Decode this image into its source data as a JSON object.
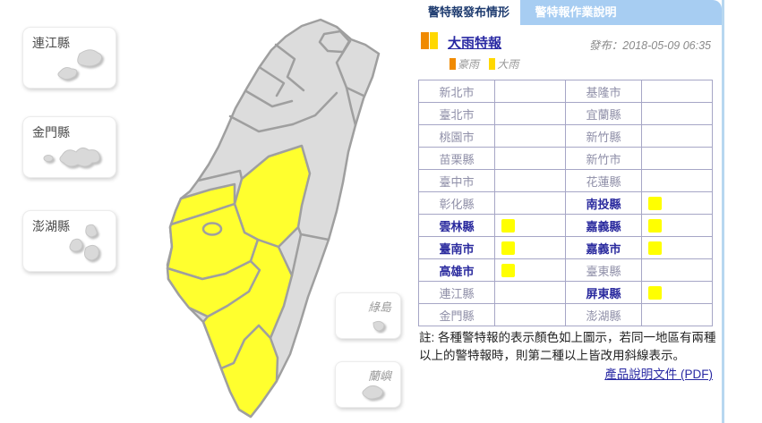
{
  "tabs": {
    "items": [
      {
        "label": "警特報發布情形",
        "active": true
      },
      {
        "label": "警特報作業說明",
        "active": false
      }
    ]
  },
  "warning": {
    "title": "大雨特報",
    "issued": "發布：2018-05-09 06:35"
  },
  "legend": {
    "items": [
      {
        "label": "豪雨",
        "color": "#f08a00"
      },
      {
        "label": "大雨",
        "color": "#ffd800"
      }
    ]
  },
  "map": {
    "warning_color": "#ffff2e",
    "normal_color": "#dcdcdc",
    "marker_color": "#ffff00",
    "warning_regions": [
      "nantou",
      "yunlin",
      "chiayi-county",
      "chiayi-city",
      "tainan",
      "kaohsiung",
      "pingtung"
    ]
  },
  "offshore": {
    "lienchiang": "連江縣",
    "kinmen": "金門縣",
    "penghu": "澎湖縣",
    "green_island": "綠島",
    "orchid_island": "蘭嶼"
  },
  "table": {
    "rows": [
      [
        {
          "name": "新北市",
          "warn": false
        },
        {
          "name": "基隆市",
          "warn": false
        }
      ],
      [
        {
          "name": "臺北市",
          "warn": false
        },
        {
          "name": "宜蘭縣",
          "warn": false
        }
      ],
      [
        {
          "name": "桃園市",
          "warn": false
        },
        {
          "name": "新竹縣",
          "warn": false
        }
      ],
      [
        {
          "name": "苗栗縣",
          "warn": false
        },
        {
          "name": "新竹市",
          "warn": false
        }
      ],
      [
        {
          "name": "臺中市",
          "warn": false
        },
        {
          "name": "花蓮縣",
          "warn": false
        }
      ],
      [
        {
          "name": "彰化縣",
          "warn": false
        },
        {
          "name": "南投縣",
          "warn": true
        }
      ],
      [
        {
          "name": "雲林縣",
          "warn": true
        },
        {
          "name": "嘉義縣",
          "warn": true
        }
      ],
      [
        {
          "name": "臺南市",
          "warn": true
        },
        {
          "name": "嘉義市",
          "warn": true
        }
      ],
      [
        {
          "name": "高雄市",
          "warn": true
        },
        {
          "name": "臺東縣",
          "warn": false
        }
      ],
      [
        {
          "name": "連江縣",
          "warn": false
        },
        {
          "name": "屏東縣",
          "warn": true
        }
      ],
      [
        {
          "name": "金門縣",
          "warn": false
        },
        {
          "name": "澎湖縣",
          "warn": false
        }
      ]
    ]
  },
  "note": "註: 各種警特報的表示顏色如上圖示，若同一地區有兩種以上的警特報時，則第二種以上皆改用斜線表示。",
  "doc_link": "產品說明文件 (PDF)"
}
